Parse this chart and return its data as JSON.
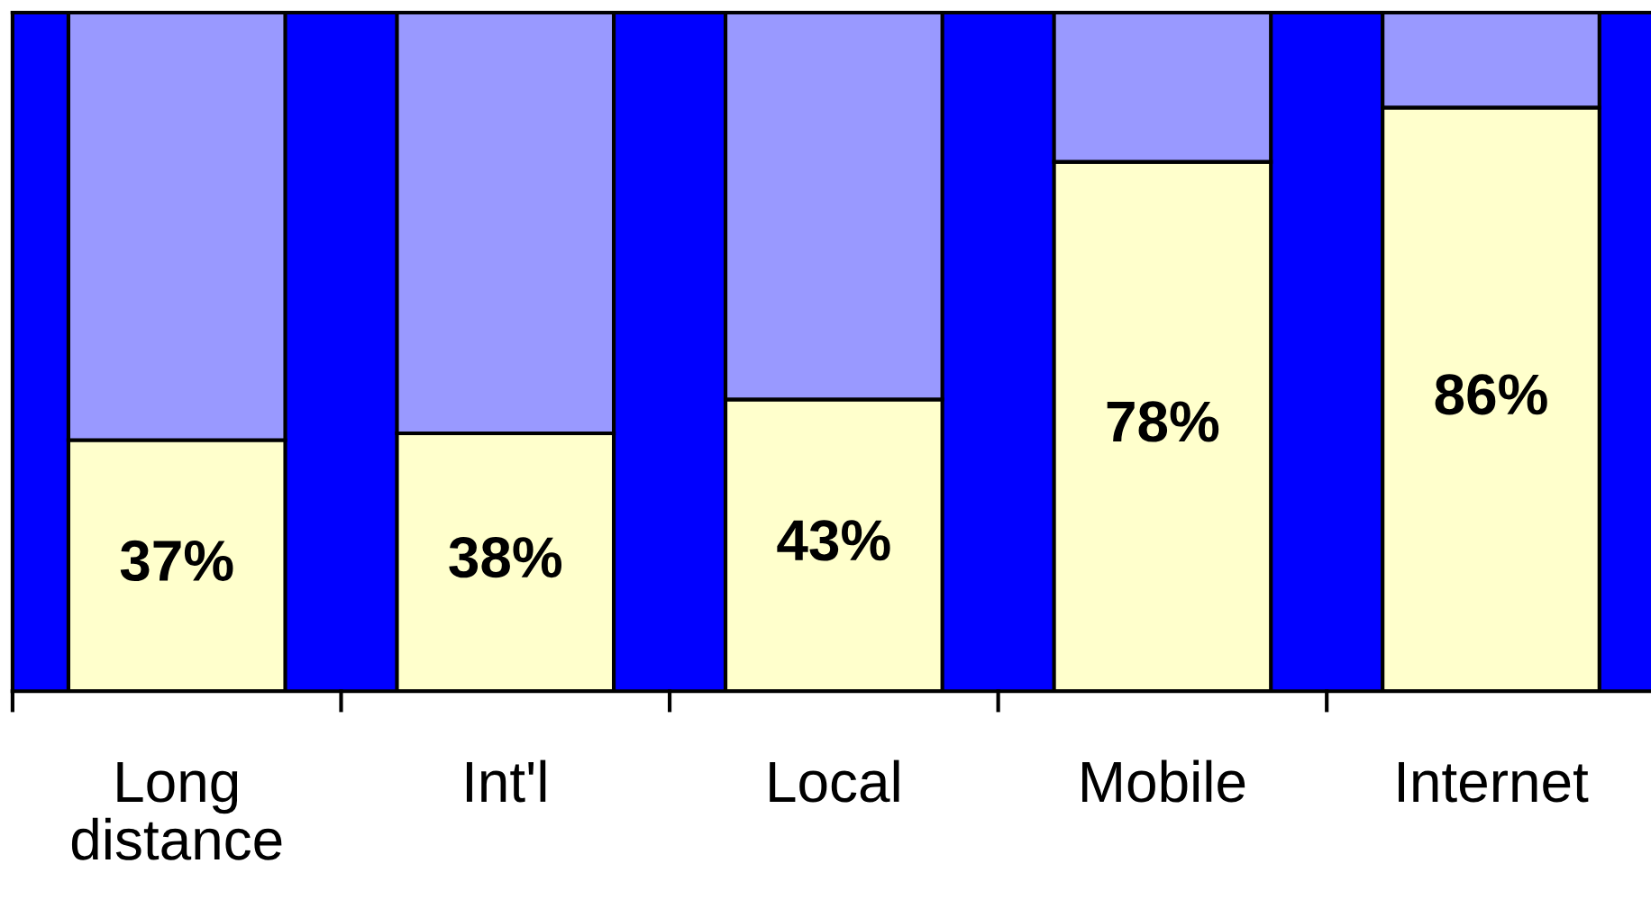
{
  "chart_data": {
    "type": "bar",
    "stacked": true,
    "bands": [
      {
        "axis": "y",
        "from": 0,
        "to": 100,
        "color": "#0000ff"
      }
    ],
    "categories": [
      "Long\ndistance",
      "Int'l",
      "Local",
      "Mobile",
      "Internet"
    ],
    "series": [
      {
        "color": "#ffffcc",
        "values": [
          37,
          38,
          43,
          78,
          86
        ],
        "value_labels": [
          "37%",
          "38%",
          "43%",
          "78%",
          "86%"
        ]
      },
      {
        "color": "#9999ff",
        "values": [
          63,
          62,
          57,
          22,
          14
        ]
      }
    ]
  }
}
